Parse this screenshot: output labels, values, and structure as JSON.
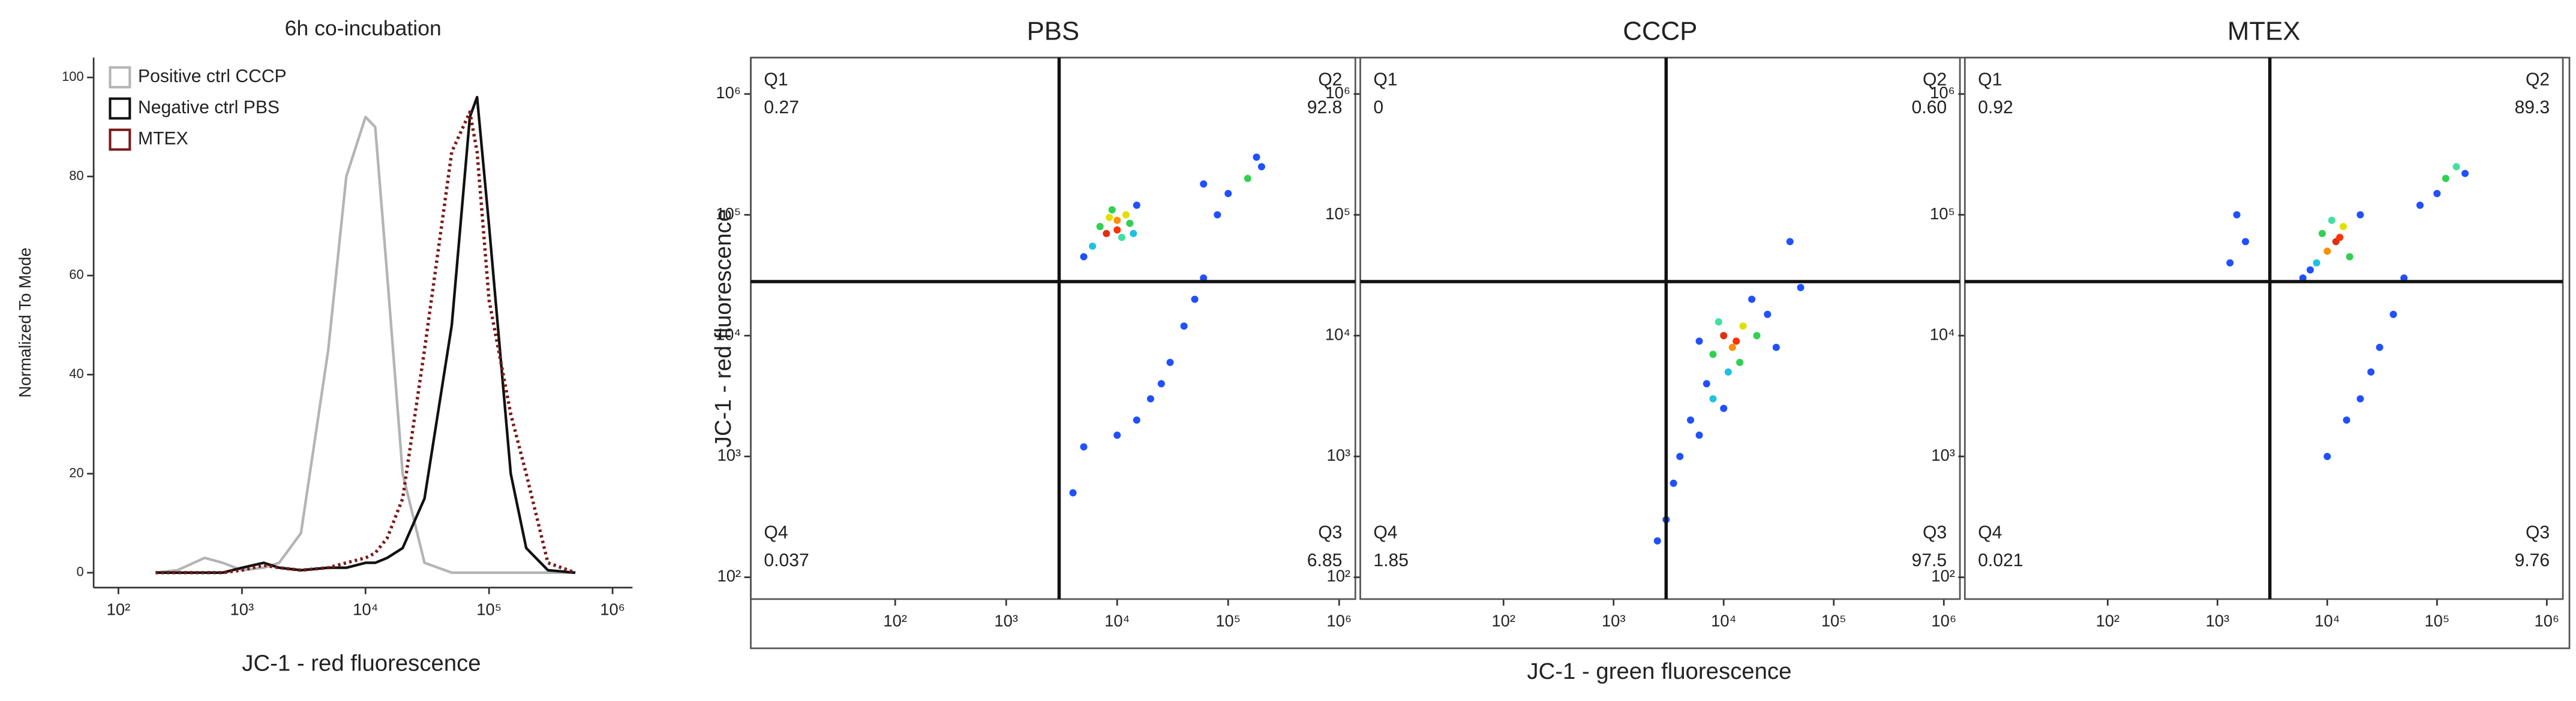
{
  "chart_data": [
    {
      "type": "line",
      "title": "6h co-incubation",
      "xlabel": "JC-1 - red fluorescence",
      "ylabel": "Normalized To Mode",
      "log_x": true,
      "legend": "upper left",
      "x": [
        200,
        300,
        500,
        700,
        1000,
        1500,
        2000,
        3000,
        5000,
        7000,
        10000,
        12000,
        15000,
        20000,
        30000,
        50000,
        70000,
        80000,
        100000,
        150000,
        200000,
        300000,
        500000
      ],
      "series": [
        {
          "name": "Positive ctrl CCCP",
          "color": "#b4b4b4",
          "style": "solid",
          "values": [
            0,
            0.5,
            3,
            2,
            0.5,
            1,
            2,
            8,
            45,
            80,
            92,
            90,
            60,
            20,
            2,
            0,
            0,
            0,
            0,
            0,
            0,
            0,
            0
          ]
        },
        {
          "name": "Negative ctrl PBS",
          "color": "#111111",
          "style": "solid",
          "values": [
            0,
            0,
            0,
            0,
            1,
            2,
            1,
            0.5,
            1,
            1,
            2,
            2,
            3,
            5,
            15,
            50,
            92,
            96,
            70,
            20,
            5,
            0.5,
            0
          ]
        },
        {
          "name": "MTEX",
          "color": "#7a1a1a",
          "style": "dotted",
          "values": [
            0,
            0,
            0,
            0,
            0.5,
            1.5,
            1,
            0.5,
            1,
            2,
            3,
            4,
            7,
            15,
            45,
            85,
            93,
            85,
            55,
            32,
            20,
            2,
            0
          ]
        }
      ],
      "xlim": [
        63,
        1450000
      ],
      "xticks": [
        {
          "value": 100,
          "label": "10²"
        },
        {
          "value": 1000,
          "label": "10³"
        },
        {
          "value": 10000,
          "label": "10⁴"
        },
        {
          "value": 100000,
          "label": "10⁵"
        },
        {
          "value": 1000000,
          "label": "10⁶"
        }
      ],
      "ylim": [
        -3,
        104
      ],
      "yticks": [
        0,
        20,
        40,
        60,
        80,
        100
      ]
    },
    {
      "type": "scatter",
      "title": "PBS",
      "ylabel": "JC-1 - red fluorescence",
      "log_x": true,
      "log_y": true,
      "xlim": [
        5,
        1400000
      ],
      "ylim": [
        66,
        2000000
      ],
      "xticks": [
        {
          "value": 100,
          "label": "10²"
        },
        {
          "value": 1000,
          "label": "10³"
        },
        {
          "value": 10000,
          "label": "10⁴"
        },
        {
          "value": 100000,
          "label": "10⁵"
        },
        {
          "value": 1000000,
          "label": "10⁶"
        }
      ],
      "yticks": [
        {
          "value": 100,
          "label": "10²"
        },
        {
          "value": 1000,
          "label": "10³"
        },
        {
          "value": 10000,
          "label": "10⁴"
        },
        {
          "value": 100000,
          "label": "10⁵"
        },
        {
          "value": 1000000,
          "label": "10⁶"
        }
      ],
      "gate": [
        3000,
        28000
      ],
      "quadrants": {
        "names": [
          "Q1",
          "Q2",
          "Q3",
          "Q4"
        ],
        "values": [
          0.27,
          92.8,
          6.85,
          0.037
        ],
        "value_labels": [
          "0.27",
          "92.8",
          "6.85",
          "0.037"
        ]
      },
      "x": [
        8000,
        10000,
        12000,
        9000,
        7000,
        11000,
        13000,
        6000,
        15000,
        10000,
        8500,
        14000,
        5000,
        150000,
        200000,
        100000,
        180000,
        80000,
        60000,
        50000,
        40000,
        30000,
        20000,
        15000,
        10000,
        60000,
        25000,
        5000,
        4000
      ],
      "values": [
        70000,
        90000,
        100000,
        110000,
        80000,
        65000,
        85000,
        55000,
        120000,
        75000,
        95000,
        70000,
        45000,
        200000,
        250000,
        150000,
        300000,
        100000,
        180000,
        20000,
        12000,
        6000,
        3000,
        2000,
        1500,
        30000,
        4000,
        1200,
        500
      ],
      "colors": [
        "#e03010",
        "#ff9000",
        "#e0e000",
        "#30d050",
        "#30d050",
        "#40e0a0",
        "#30d050",
        "#20c0e0",
        "#2050ff",
        "#ff3000",
        "#e0e000",
        "#20c0e0",
        "#2050ff",
        "#30d050",
        "#2050ff",
        "#2050ff",
        "#2050ff",
        "#2050ff",
        "#2050ff",
        "#2050ff",
        "#2050ff",
        "#2050ff",
        "#2050ff",
        "#2050ff",
        "#2050ff",
        "#2050ff",
        "#2050ff",
        "#2050ff",
        "#2050ff"
      ]
    },
    {
      "type": "scatter",
      "title": "CCCP",
      "xlabel": "JC-1 - green fluorescence",
      "log_x": true,
      "log_y": true,
      "xlim": [
        5,
        1400000
      ],
      "ylim": [
        66,
        2000000
      ],
      "xticks": [
        {
          "value": 100,
          "label": "10²"
        },
        {
          "value": 1000,
          "label": "10³"
        },
        {
          "value": 10000,
          "label": "10⁴"
        },
        {
          "value": 100000,
          "label": "10⁵"
        },
        {
          "value": 1000000,
          "label": "10⁶"
        }
      ],
      "yticks": [
        {
          "value": 100,
          "label": "10²"
        },
        {
          "value": 1000,
          "label": "10³"
        },
        {
          "value": 10000,
          "label": "10⁴"
        },
        {
          "value": 100000,
          "label": "10⁵"
        },
        {
          "value": 1000000,
          "label": "10⁶"
        }
      ],
      "gate": [
        3000,
        28000
      ],
      "quadrants": {
        "names": [
          "Q1",
          "Q2",
          "Q3",
          "Q4"
        ],
        "values": [
          0,
          0.6,
          97.5,
          1.85
        ],
        "value_labels": [
          "0",
          "0.60",
          "97.5",
          "1.85"
        ]
      },
      "x": [
        10000,
        12000,
        15000,
        8000,
        14000,
        9000,
        20000,
        11000,
        7000,
        25000,
        13000,
        18000,
        6000,
        30000,
        5000,
        4000,
        3500,
        6000,
        3000,
        50000,
        40000,
        8000,
        10000,
        2500
      ],
      "values": [
        10000,
        8000,
        12000,
        7000,
        6000,
        13000,
        10000,
        5000,
        4000,
        15000,
        9000,
        20000,
        9000,
        8000,
        2000,
        1000,
        600,
        1500,
        300,
        25000,
        60000,
        3000,
        2500,
        200
      ],
      "colors": [
        "#e03010",
        "#ff9000",
        "#e0e000",
        "#30d050",
        "#30d050",
        "#40e0a0",
        "#30d050",
        "#20c0e0",
        "#2050ff",
        "#2050ff",
        "#ff3000",
        "#2050ff",
        "#2050ff",
        "#2050ff",
        "#2050ff",
        "#2050ff",
        "#2050ff",
        "#2050ff",
        "#2050ff",
        "#2050ff",
        "#2050ff",
        "#20c0e0",
        "#2050ff",
        "#2050ff"
      ]
    },
    {
      "type": "scatter",
      "title": "MTEX",
      "log_x": true,
      "log_y": true,
      "xlim": [
        5,
        1400000
      ],
      "ylim": [
        66,
        2000000
      ],
      "xticks": [
        {
          "value": 100,
          "label": "10²"
        },
        {
          "value": 1000,
          "label": "10³"
        },
        {
          "value": 10000,
          "label": "10⁴"
        },
        {
          "value": 100000,
          "label": "10⁵"
        },
        {
          "value": 1000000,
          "label": "10⁶"
        }
      ],
      "yticks": [
        {
          "value": 100,
          "label": "10²"
        },
        {
          "value": 1000,
          "label": "10³"
        },
        {
          "value": 10000,
          "label": "10⁴"
        },
        {
          "value": 100000,
          "label": "10⁵"
        },
        {
          "value": 1000000,
          "label": "10⁶"
        }
      ],
      "gate": [
        3000,
        28000
      ],
      "quadrants": {
        "names": [
          "Q1",
          "Q2",
          "Q3",
          "Q4"
        ],
        "values": [
          0.92,
          89.3,
          9.76,
          0.021
        ],
        "value_labels": [
          "0.92",
          "89.3",
          "9.76",
          "0.021"
        ]
      },
      "x": [
        12000,
        10000,
        14000,
        9000,
        16000,
        11000,
        8000,
        20000,
        7000,
        13000,
        120000,
        150000,
        100000,
        180000,
        70000,
        50000,
        40000,
        30000,
        25000,
        20000,
        15000,
        10000,
        1500,
        1800,
        1300,
        6000
      ],
      "values": [
        60000,
        50000,
        80000,
        70000,
        45000,
        90000,
        40000,
        100000,
        35000,
        65000,
        200000,
        250000,
        150000,
        220000,
        120000,
        30000,
        15000,
        8000,
        5000,
        3000,
        2000,
        1000,
        100000,
        60000,
        40000,
        30000
      ],
      "colors": [
        "#e03010",
        "#ff9000",
        "#e0e000",
        "#30d050",
        "#30d050",
        "#40e0a0",
        "#20c0e0",
        "#2050ff",
        "#2050ff",
        "#ff3000",
        "#30d050",
        "#40e0a0",
        "#2050ff",
        "#2050ff",
        "#2050ff",
        "#2050ff",
        "#2050ff",
        "#2050ff",
        "#2050ff",
        "#2050ff",
        "#2050ff",
        "#2050ff",
        "#2050ff",
        "#2050ff",
        "#2050ff",
        "#2050ff"
      ]
    }
  ]
}
